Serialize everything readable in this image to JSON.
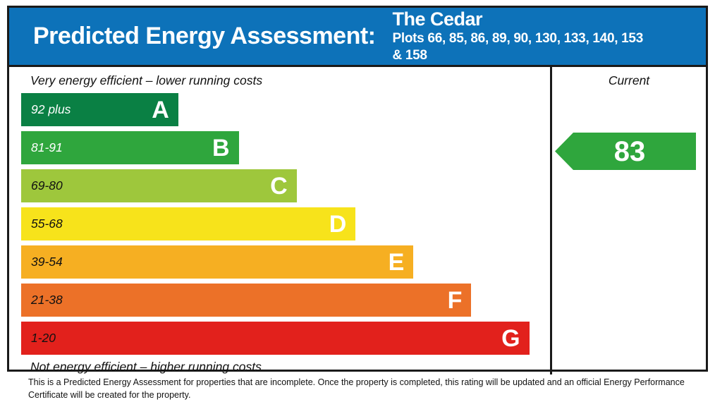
{
  "header": {
    "title": "Predicted Energy Assessment:",
    "property_name": "The Cedar",
    "plots": "Plots 66, 85, 86, 89, 90, 130, 133, 140, 153 & 158",
    "background_color": "#0d72b9"
  },
  "chart": {
    "top_label": "Very energy efficient – lower running costs",
    "bottom_label": "Not energy efficient – higher running costs",
    "current_label": "Current",
    "current_value": "83",
    "current_arrow_color": "#2fa63d",
    "bands": [
      {
        "letter": "A",
        "range": "92 plus",
        "color": "#0a8044",
        "range_text_color": "#ffffff",
        "width_pct": 30.4
      },
      {
        "letter": "B",
        "range": "81-91",
        "color": "#2fa63d",
        "range_text_color": "#ffffff",
        "width_pct": 42.1
      },
      {
        "letter": "C",
        "range": "69-80",
        "color": "#9ec73c",
        "range_text_color": "#111111",
        "width_pct": 53.3
      },
      {
        "letter": "D",
        "range": "55-68",
        "color": "#f7e31b",
        "range_text_color": "#111111",
        "width_pct": 64.7
      },
      {
        "letter": "E",
        "range": "39-54",
        "color": "#f6af22",
        "range_text_color": "#111111",
        "width_pct": 75.9
      },
      {
        "letter": "F",
        "range": "21-38",
        "color": "#ec7128",
        "range_text_color": "#111111",
        "width_pct": 87.1
      },
      {
        "letter": "G",
        "range": "1-20",
        "color": "#e2211c",
        "range_text_color": "#111111",
        "width_pct": 98.3
      }
    ]
  },
  "footer": {
    "text": "This is a Predicted Energy Assessment for properties that are incomplete. Once the property is completed, this rating will be updated and an official Energy Performance Certificate will be created for the property."
  },
  "chart_data": {
    "type": "bar",
    "title": "Predicted Energy Assessment: The Cedar",
    "subtitle": "Plots 66, 85, 86, 89, 90, 130, 133, 140, 153 & 158",
    "categories": [
      "A",
      "B",
      "C",
      "D",
      "E",
      "F",
      "G"
    ],
    "band_ranges": [
      "92 plus",
      "81-91",
      "69-80",
      "55-68",
      "39-54",
      "21-38",
      "1-20"
    ],
    "bar_widths_pct_of_chart": [
      30.4,
      42.1,
      53.3,
      64.7,
      75.9,
      87.1,
      98.3
    ],
    "bar_colors": [
      "#0a8044",
      "#2fa63d",
      "#9ec73c",
      "#f7e31b",
      "#f6af22",
      "#ec7128",
      "#e2211c"
    ],
    "annotations": [
      "Very energy efficient – lower running costs",
      "Not energy efficient – higher running costs"
    ],
    "current_rating": {
      "column_label": "Current",
      "value": 83,
      "band": "B",
      "marker": "left-pointing-arrow",
      "color": "#2fa63d"
    },
    "legend_position": "none",
    "grid": false
  }
}
